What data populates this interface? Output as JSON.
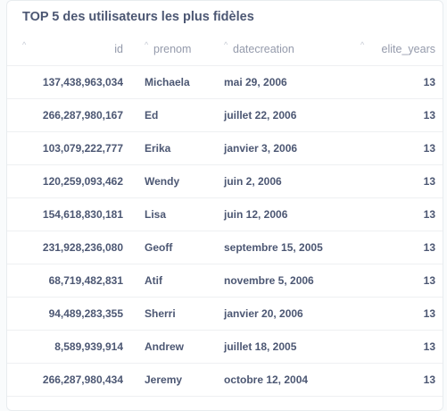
{
  "card": {
    "title": "TOP 5 des utilisateurs les plus fidèles"
  },
  "table": {
    "sort_icon": "^",
    "columns": [
      "id",
      "prenom",
      "datecreation",
      "elite_years"
    ],
    "rows": [
      {
        "id": "137,438,963,034",
        "prenom": "Michaela",
        "datecreation": "mai 29, 2006",
        "elite_years": "13"
      },
      {
        "id": "266,287,980,167",
        "prenom": "Ed",
        "datecreation": "juillet 22, 2006",
        "elite_years": "13"
      },
      {
        "id": "103,079,222,777",
        "prenom": "Erika",
        "datecreation": "janvier 3, 2006",
        "elite_years": "13"
      },
      {
        "id": "120,259,093,462",
        "prenom": "Wendy",
        "datecreation": "juin 2, 2006",
        "elite_years": "13"
      },
      {
        "id": "154,618,830,181",
        "prenom": "Lisa",
        "datecreation": "juin 12, 2006",
        "elite_years": "13"
      },
      {
        "id": "231,928,236,080",
        "prenom": "Geoff",
        "datecreation": "septembre 15, 2005",
        "elite_years": "13"
      },
      {
        "id": "68,719,482,831",
        "prenom": "Atif",
        "datecreation": "novembre 5, 2006",
        "elite_years": "13"
      },
      {
        "id": "94,489,283,355",
        "prenom": "Sherri",
        "datecreation": "janvier 20, 2006",
        "elite_years": "13"
      },
      {
        "id": "8,589,939,914",
        "prenom": "Andrew",
        "datecreation": "juillet 18, 2005",
        "elite_years": "13"
      },
      {
        "id": "266,287,980,434",
        "prenom": "Jeremy",
        "datecreation": "octobre 12, 2004",
        "elite_years": "13"
      }
    ]
  }
}
